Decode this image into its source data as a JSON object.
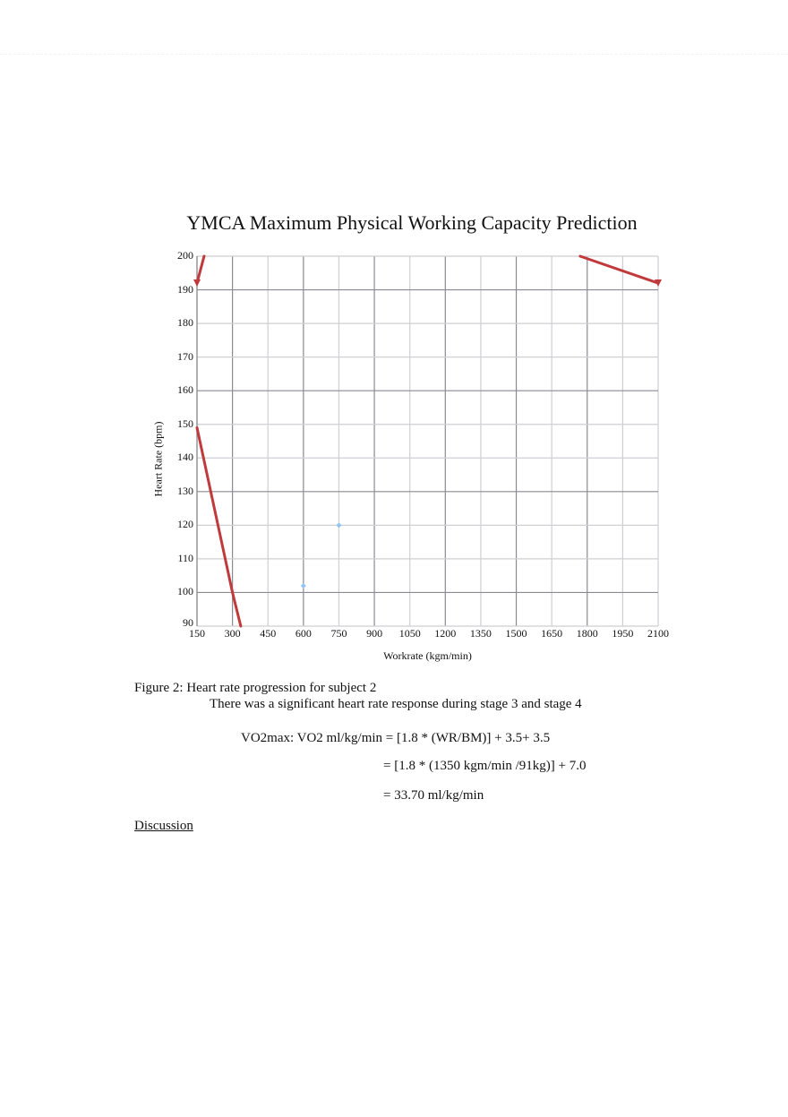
{
  "chart_data": {
    "type": "line",
    "title": "YMCA Maximum Physical Working Capacity Prediction",
    "xlabel": "Workrate (kgm/min)",
    "ylabel": "Heart Rate (bpm)",
    "xlim": [
      150,
      2100
    ],
    "ylim": [
      90,
      200
    ],
    "x_ticks": [
      150,
      300,
      450,
      600,
      750,
      900,
      1050,
      1200,
      1350,
      1500,
      1650,
      1800,
      1950,
      2100
    ],
    "y_ticks": [
      90,
      100,
      110,
      120,
      130,
      140,
      150,
      160,
      170,
      180,
      190,
      200
    ],
    "grid": true,
    "legend": null,
    "series": [
      {
        "name": "Heart rate data points",
        "color": "#8ec5f5",
        "style": "markers",
        "points": [
          {
            "x": 600,
            "y": 102
          },
          {
            "x": 750,
            "y": 120
          }
        ]
      },
      {
        "name": "Trend line segment (lower left)",
        "color": "#c0393b",
        "style": "line",
        "points": [
          {
            "x": 150,
            "y": 149
          },
          {
            "x": 300,
            "y": 100
          },
          {
            "x": 335,
            "y": 90
          }
        ]
      },
      {
        "name": "Trend line segment (upper left, arrow)",
        "color": "#c0393b",
        "style": "line",
        "points": [
          {
            "x": 150,
            "y": 192
          },
          {
            "x": 180,
            "y": 200
          }
        ]
      },
      {
        "name": "Trend line segment (upper right, arrow)",
        "color": "#c0393b",
        "style": "line",
        "points": [
          {
            "x": 1770,
            "y": 200
          },
          {
            "x": 2100,
            "y": 192
          }
        ]
      }
    ]
  },
  "document": {
    "caption": "Figure 2: Heart rate progression for subject 2",
    "note": "There was a significant heart rate response during stage 3 and stage 4",
    "equation": {
      "line1": "VO2max: VO2 ml/kg/min = [1.8 * (WR/BM)] + 3.5+ 3.5",
      "line2": "= [1.8 * (1350 kgm/min /91kg)] + 7.0",
      "line3": "= 33.70 ml/kg/min"
    },
    "section_heading": "Discussion"
  },
  "colors": {
    "trend_line": "#c0393b",
    "data_points": "#8ec5f5",
    "grid_major": "#8a8a92",
    "grid_minor": "#cfcfd4"
  }
}
